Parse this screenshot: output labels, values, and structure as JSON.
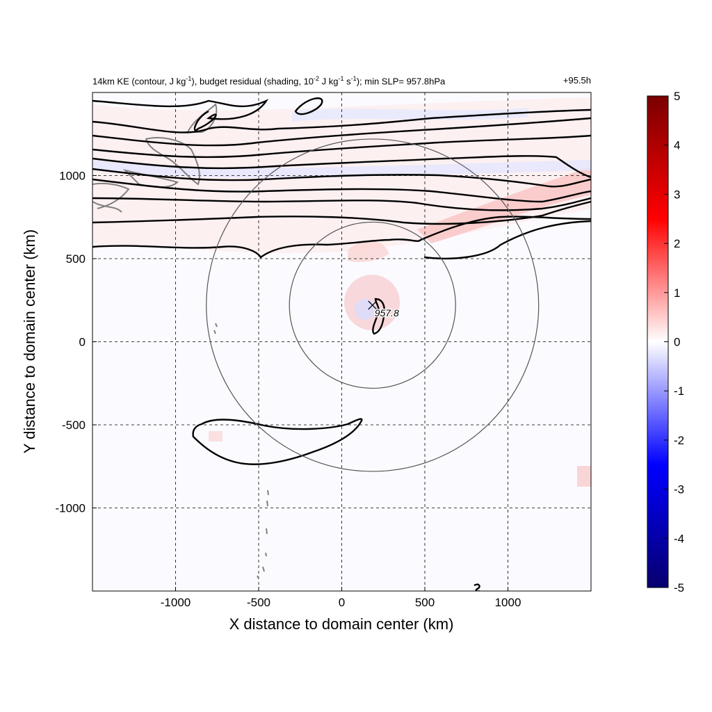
{
  "title_parts": {
    "p1": "14km KE (contour, J kg",
    "sup1": "-1",
    "p2": "), budget residual (shading, 10",
    "sup2": "-2",
    "p3": " J kg",
    "sup3": "-1",
    "p4": " s",
    "sup4": "-1",
    "p5": "); min SLP= 957.8hPa"
  },
  "time_label": "+95.5h",
  "chart_data": {
    "type": "heatmap",
    "xlabel": "X distance to domain center (km)",
    "ylabel": "Y distance to domain center (km)",
    "xlim": [
      -1500,
      1500
    ],
    "ylim": [
      -1500,
      1500
    ],
    "xticks": [
      -1000,
      -500,
      0,
      500,
      1000
    ],
    "xtick_labels": [
      "-1000",
      "-500",
      "0",
      "500",
      "1000"
    ],
    "yticks": [
      -1000,
      -500,
      0,
      500,
      1000
    ],
    "ytick_labels": [
      "-1000",
      "-500",
      "0",
      "500",
      "1000"
    ],
    "grid": true,
    "colorbar": {
      "min": -5,
      "max": 5,
      "ticks": [
        5,
        4,
        3,
        2,
        1,
        0,
        -1,
        -2,
        -3,
        -4,
        -5
      ],
      "tick_labels": [
        "5",
        "4",
        "3",
        "2",
        "1",
        "0",
        "-1",
        "-2",
        "-3",
        "-4",
        "-5"
      ],
      "colors": [
        "#08006e",
        "#0000ff",
        "#ffffff",
        "#ff0000",
        "#7a0000"
      ]
    },
    "storm_center": {
      "x": 185,
      "y": 220,
      "label": "957.8"
    },
    "circles_radius_km": [
      500,
      1000
    ],
    "contour_color": "#000000",
    "coast_color": "#808080"
  }
}
